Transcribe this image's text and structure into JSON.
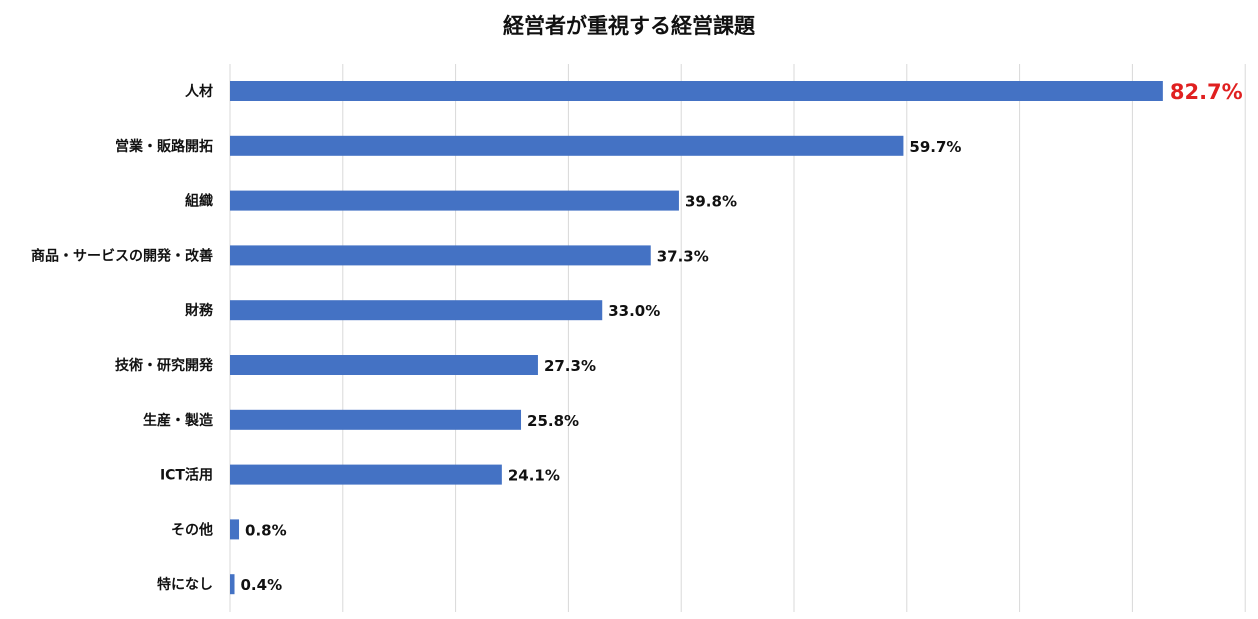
{
  "chart_data": {
    "type": "bar",
    "orientation": "horizontal",
    "title": "経営者が重視する経営課題",
    "categories": [
      "人材",
      "営業・販路開拓",
      "組織",
      "商品・サービスの開発・改善",
      "財務",
      "技術・研究開発",
      "生産・製造",
      "ICT活用",
      "その他",
      "特になし"
    ],
    "values": [
      82.7,
      59.7,
      39.8,
      37.3,
      33.0,
      27.3,
      25.8,
      24.1,
      0.8,
      0.4
    ],
    "value_labels": [
      "82.7%",
      "59.7%",
      "39.8%",
      "37.3%",
      "33.0%",
      "27.3%",
      "25.8%",
      "24.1%",
      "0.8%",
      "0.4%"
    ],
    "highlight_index": 0,
    "xlim": [
      0,
      90
    ],
    "grid": true,
    "legend": "none",
    "colors": {
      "bar": "#4472c4",
      "highlight_label": "#e02020",
      "grid": "#d9d9d9"
    }
  }
}
